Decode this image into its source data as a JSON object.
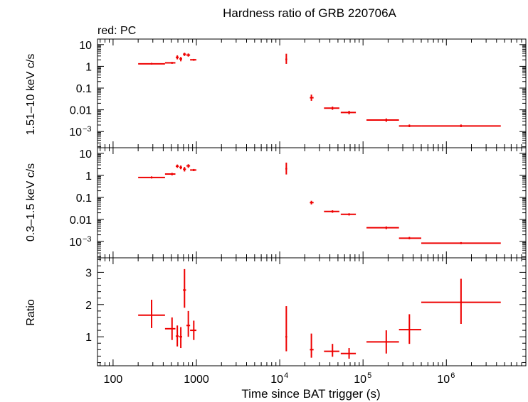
{
  "title": "Hardness ratio of GRB 220706A",
  "legend_note": "red: PC",
  "chart_data": {
    "type": "scatter",
    "title": "Hardness ratio of GRB 220706A",
    "xlabel": "Time since BAT trigger (s)",
    "xscale": "log",
    "xlim": [
      65,
      9000000
    ],
    "x_ticks": [
      {
        "value": 100,
        "label": "100"
      },
      {
        "value": 1000,
        "label": "1000"
      },
      {
        "value": 10000,
        "label": "10",
        "exp": "4"
      },
      {
        "value": 100000,
        "label": "10",
        "exp": "5"
      },
      {
        "value": 1000000,
        "label": "10",
        "exp": "6"
      }
    ],
    "series_color": "#ee0000",
    "panels": [
      {
        "name": "hard",
        "ylabel": "1.51–10 keV c/s",
        "yscale": "log",
        "ylim": [
          0.00018,
          18
        ],
        "y_ticks": [
          {
            "value": 10,
            "label": "10"
          },
          {
            "value": 1,
            "label": "1"
          },
          {
            "value": 0.1,
            "label": "0.1"
          },
          {
            "value": 0.01,
            "label": "0.01"
          },
          {
            "value": 0.001,
            "label": "10",
            "exp": "−3"
          }
        ],
        "points": [
          {
            "x": 290,
            "xlo": 200,
            "xhi": 420,
            "y": 1.3,
            "ylo": 1.2,
            "yhi": 1.45
          },
          {
            "x": 510,
            "xlo": 420,
            "xhi": 560,
            "y": 1.45,
            "ylo": 1.3,
            "yhi": 1.6
          },
          {
            "x": 590,
            "xlo": 565,
            "xhi": 615,
            "y": 2.6,
            "ylo": 2.1,
            "yhi": 3.2
          },
          {
            "x": 650,
            "xlo": 625,
            "xhi": 675,
            "y": 2.2,
            "ylo": 1.7,
            "yhi": 2.7
          },
          {
            "x": 720,
            "xlo": 690,
            "xhi": 750,
            "y": 3.6,
            "ylo": 3.0,
            "yhi": 4.2
          },
          {
            "x": 800,
            "xlo": 760,
            "xhi": 840,
            "y": 3.3,
            "ylo": 2.8,
            "yhi": 3.9
          },
          {
            "x": 930,
            "xlo": 840,
            "xhi": 1000,
            "y": 2.0,
            "ylo": 1.8,
            "yhi": 2.2
          },
          {
            "x": 12000,
            "xlo": 11700,
            "xhi": 12300,
            "y": 2.1,
            "ylo": 1.3,
            "yhi": 3.8
          },
          {
            "x": 24000,
            "xlo": 23000,
            "xhi": 25500,
            "y": 0.036,
            "ylo": 0.026,
            "yhi": 0.05
          },
          {
            "x": 43000,
            "xlo": 34000,
            "xhi": 52000,
            "y": 0.012,
            "ylo": 0.01,
            "yhi": 0.014
          },
          {
            "x": 68000,
            "xlo": 54000,
            "xhi": 82000,
            "y": 0.0075,
            "ylo": 0.0062,
            "yhi": 0.009
          },
          {
            "x": 190000,
            "xlo": 110000,
            "xhi": 270000,
            "y": 0.0034,
            "ylo": 0.0028,
            "yhi": 0.004
          },
          {
            "x": 360000,
            "xlo": 270000,
            "xhi": 500000,
            "y": 0.0018,
            "ylo": 0.0016,
            "yhi": 0.0021
          },
          {
            "x": 1500000,
            "xlo": 500000,
            "xhi": 4500000,
            "y": 0.0018,
            "ylo": 0.0016,
            "yhi": 0.0021
          }
        ]
      },
      {
        "name": "soft",
        "ylabel": "0.3–1.5 keV c/s",
        "yscale": "log",
        "ylim": [
          0.00018,
          18
        ],
        "y_ticks": [
          {
            "value": 10,
            "label": "10"
          },
          {
            "value": 1,
            "label": "1"
          },
          {
            "value": 0.1,
            "label": "0.1"
          },
          {
            "value": 0.01,
            "label": "0.01"
          },
          {
            "value": 0.001,
            "label": "10",
            "exp": "−3"
          }
        ],
        "points": [
          {
            "x": 290,
            "xlo": 200,
            "xhi": 420,
            "y": 0.8,
            "ylo": 0.72,
            "yhi": 0.9
          },
          {
            "x": 510,
            "xlo": 420,
            "xhi": 560,
            "y": 1.15,
            "ylo": 1.0,
            "yhi": 1.3
          },
          {
            "x": 590,
            "xlo": 565,
            "xhi": 615,
            "y": 2.6,
            "ylo": 2.2,
            "yhi": 3.1
          },
          {
            "x": 650,
            "xlo": 625,
            "xhi": 675,
            "y": 2.3,
            "ylo": 1.9,
            "yhi": 2.8
          },
          {
            "x": 720,
            "xlo": 690,
            "xhi": 750,
            "y": 1.9,
            "ylo": 1.5,
            "yhi": 2.4
          },
          {
            "x": 800,
            "xlo": 760,
            "xhi": 840,
            "y": 2.7,
            "ylo": 2.2,
            "yhi": 3.2
          },
          {
            "x": 930,
            "xlo": 840,
            "xhi": 1000,
            "y": 1.75,
            "ylo": 1.55,
            "yhi": 1.95
          },
          {
            "x": 12000,
            "xlo": 11700,
            "xhi": 12300,
            "y": 2.0,
            "ylo": 1.1,
            "yhi": 3.8
          },
          {
            "x": 24000,
            "xlo": 23000,
            "xhi": 25500,
            "y": 0.058,
            "ylo": 0.048,
            "yhi": 0.07
          },
          {
            "x": 43000,
            "xlo": 34000,
            "xhi": 52000,
            "y": 0.023,
            "ylo": 0.02,
            "yhi": 0.026
          },
          {
            "x": 68000,
            "xlo": 54000,
            "xhi": 82000,
            "y": 0.017,
            "ylo": 0.015,
            "yhi": 0.019
          },
          {
            "x": 190000,
            "xlo": 110000,
            "xhi": 270000,
            "y": 0.0042,
            "ylo": 0.0036,
            "yhi": 0.0048
          },
          {
            "x": 360000,
            "xlo": 270000,
            "xhi": 500000,
            "y": 0.0014,
            "ylo": 0.00125,
            "yhi": 0.0016
          },
          {
            "x": 1500000,
            "xlo": 500000,
            "xhi": 4500000,
            "y": 0.00083,
            "ylo": 0.00075,
            "yhi": 0.00093
          }
        ]
      },
      {
        "name": "ratio",
        "ylabel": "Ratio",
        "yscale": "linear",
        "ylim": [
          0.1,
          3.45
        ],
        "y_ticks": [
          {
            "value": 1,
            "label": "1"
          },
          {
            "value": 2,
            "label": "2"
          },
          {
            "value": 3,
            "label": "3"
          }
        ],
        "points": [
          {
            "x": 290,
            "xlo": 200,
            "xhi": 420,
            "y": 1.67,
            "ylo": 1.27,
            "yhi": 2.15
          },
          {
            "x": 510,
            "xlo": 420,
            "xhi": 560,
            "y": 1.25,
            "ylo": 0.9,
            "yhi": 1.6
          },
          {
            "x": 590,
            "xlo": 565,
            "xhi": 615,
            "y": 1.02,
            "ylo": 0.7,
            "yhi": 1.35
          },
          {
            "x": 650,
            "xlo": 625,
            "xhi": 675,
            "y": 1.0,
            "ylo": 0.65,
            "yhi": 1.3
          },
          {
            "x": 720,
            "xlo": 690,
            "xhi": 750,
            "y": 2.45,
            "ylo": 1.9,
            "yhi": 3.1
          },
          {
            "x": 800,
            "xlo": 760,
            "xhi": 840,
            "y": 1.35,
            "ylo": 1.0,
            "yhi": 1.8
          },
          {
            "x": 930,
            "xlo": 840,
            "xhi": 1000,
            "y": 1.2,
            "ylo": 0.9,
            "yhi": 1.5
          },
          {
            "x": 12000,
            "xlo": 11700,
            "xhi": 12300,
            "y": 1.0,
            "ylo": 0.55,
            "yhi": 1.95
          },
          {
            "x": 24000,
            "xlo": 23000,
            "xhi": 25500,
            "y": 0.6,
            "ylo": 0.35,
            "yhi": 1.1
          },
          {
            "x": 43000,
            "xlo": 34000,
            "xhi": 52000,
            "y": 0.55,
            "ylo": 0.38,
            "yhi": 0.78
          },
          {
            "x": 68000,
            "xlo": 54000,
            "xhi": 82000,
            "y": 0.48,
            "ylo": 0.32,
            "yhi": 0.65
          },
          {
            "x": 190000,
            "xlo": 110000,
            "xhi": 270000,
            "y": 0.84,
            "ylo": 0.48,
            "yhi": 1.2
          },
          {
            "x": 360000,
            "xlo": 270000,
            "xhi": 500000,
            "y": 1.22,
            "ylo": 0.78,
            "yhi": 1.7
          },
          {
            "x": 1500000,
            "xlo": 500000,
            "xhi": 4500000,
            "y": 2.07,
            "ylo": 1.4,
            "yhi": 2.8
          }
        ]
      }
    ]
  }
}
